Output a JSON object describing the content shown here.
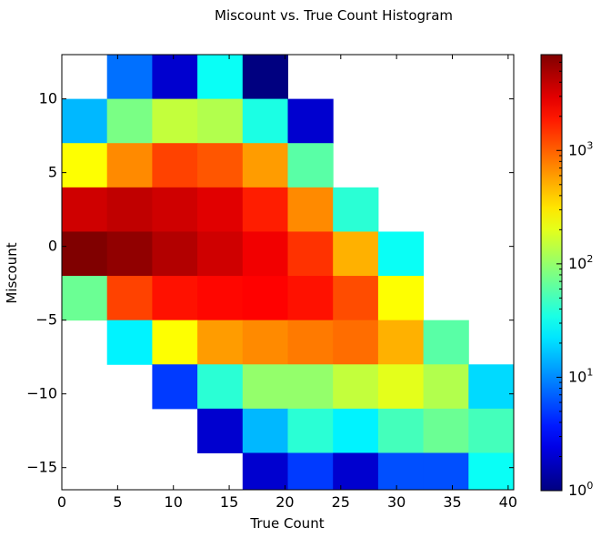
{
  "chart_data": {
    "type": "heatmap",
    "title": "Miscount vs. True Count Histogram",
    "xlabel": "True Count",
    "ylabel": "Miscount",
    "xlim": [
      0,
      40.5
    ],
    "ylim": [
      -16.5,
      13
    ],
    "x_ticks": [
      0,
      5,
      10,
      15,
      20,
      25,
      30,
      35,
      40
    ],
    "y_ticks": [
      10,
      5,
      0,
      -5,
      -10,
      -15
    ],
    "x_tick_labels": [
      "0",
      "5",
      "10",
      "15",
      "20",
      "25",
      "30",
      "35",
      "40"
    ],
    "y_tick_labels": [
      "10",
      "5",
      "0",
      "−5",
      "−10",
      "−15"
    ],
    "x_bin_edges": [
      0,
      4.05,
      8.1,
      12.15,
      16.2,
      20.25,
      24.3,
      28.35,
      32.4,
      36.45,
      40.5
    ],
    "y_bin_edges": [
      13,
      10,
      7,
      4,
      1,
      -2,
      -5,
      -8,
      -11,
      -14,
      -17
    ],
    "colorbar": {
      "scale": "log",
      "vmin": 1,
      "vmax": 7000,
      "colormap": "jet",
      "tick_values": [
        1,
        10,
        100,
        1000
      ],
      "tick_labels": [
        {
          "base": "10",
          "exp": "0"
        },
        {
          "base": "10",
          "exp": "1"
        },
        {
          "base": "10",
          "exp": "2"
        },
        {
          "base": "10",
          "exp": "3"
        }
      ]
    },
    "counts": [
      [
        null,
        8,
        2,
        30,
        1,
        null,
        null,
        null,
        null,
        null
      ],
      [
        15,
        80,
        150,
        130,
        35,
        2,
        null,
        null,
        null,
        null
      ],
      [
        250,
        700,
        1300,
        1100,
        600,
        60,
        null,
        null,
        null,
        null
      ],
      [
        3500,
        4000,
        3500,
        3000,
        1800,
        700,
        40,
        null,
        null,
        null
      ],
      [
        7000,
        6000,
        4500,
        3500,
        2600,
        1500,
        500,
        30,
        null,
        null
      ],
      [
        70,
        1300,
        2000,
        2200,
        2300,
        2000,
        1200,
        250,
        null,
        null
      ],
      [
        null,
        25,
        250,
        600,
        700,
        800,
        900,
        500,
        60,
        null
      ],
      [
        null,
        null,
        5,
        40,
        100,
        100,
        150,
        200,
        130,
        20
      ],
      [
        null,
        null,
        null,
        2,
        15,
        40,
        25,
        50,
        70,
        50
      ],
      [
        null,
        null,
        null,
        null,
        2,
        5,
        2,
        6,
        6,
        30
      ]
    ]
  }
}
